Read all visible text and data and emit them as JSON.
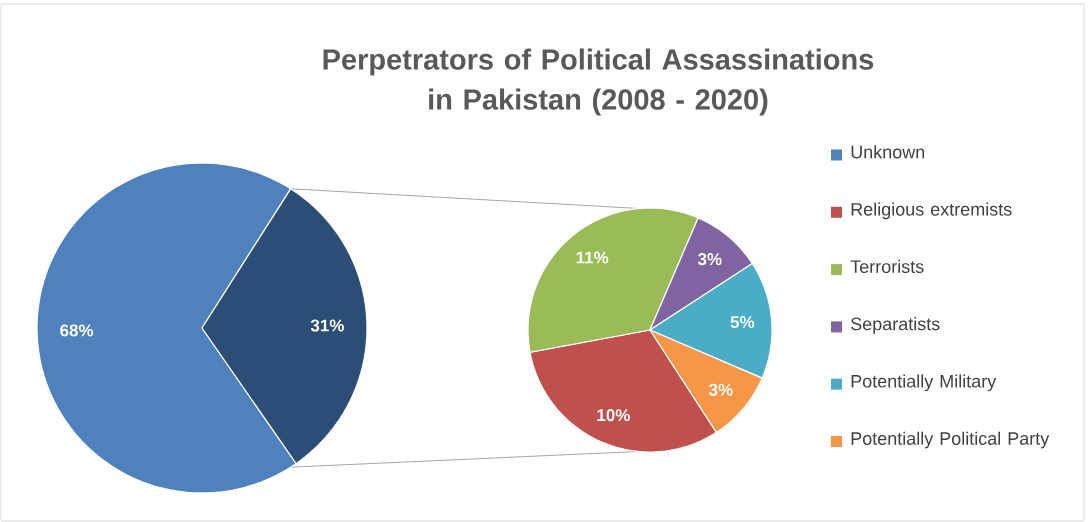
{
  "chart_data": [
    {
      "type": "pie",
      "title": "Perpetrators of Political Assassinations in Pakistan (2008 - 2020)",
      "categories": [
        "Unknown",
        null
      ],
      "values": [
        68,
        31
      ],
      "colors": [
        "#4f81bd",
        "#2c4d75"
      ],
      "value_labels": [
        "68%",
        "31%"
      ],
      "legend": "right"
    },
    {
      "type": "pie",
      "categories": [
        "Religious extremists",
        "Terrorists",
        "Separatists",
        "Potentially Military",
        "Potentially Political Party"
      ],
      "values": [
        10,
        11,
        3,
        5,
        3
      ],
      "colors": [
        "#c0504d",
        "#9bbb59",
        "#8064a2",
        "#4bacc6",
        "#f79646"
      ],
      "value_labels": [
        "10%",
        "11%",
        "3%",
        "5%",
        "3%"
      ],
      "legend": "right"
    }
  ]
}
